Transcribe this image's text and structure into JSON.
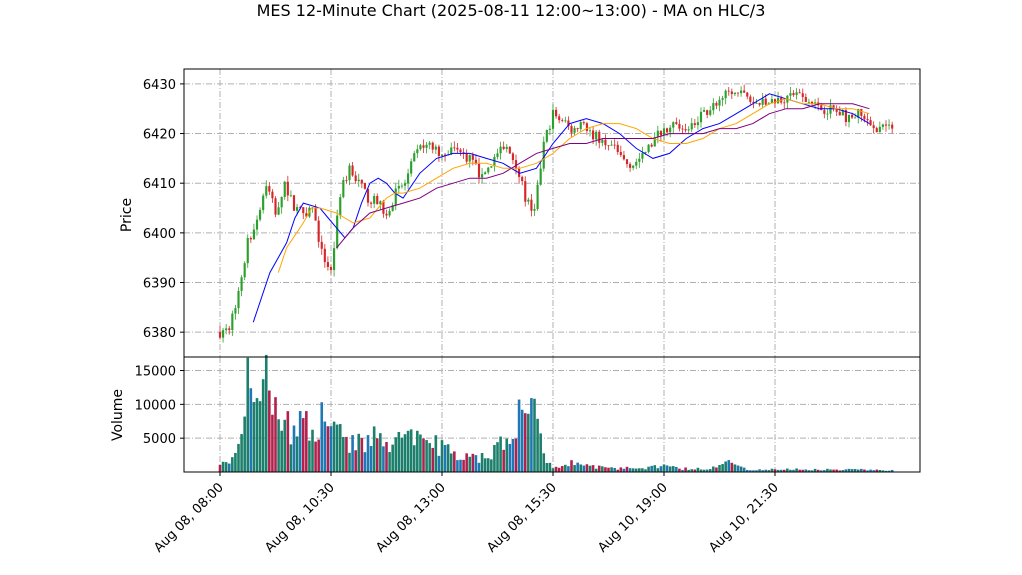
{
  "title": "MES 12-Minute Chart (2025-08-11 12:00~13:00) - MA on HLC/3",
  "chart_data": {
    "type": "candlestick",
    "grid": true,
    "price_panel": {
      "ylabel": "Price",
      "ylim": [
        6375,
        6433
      ],
      "yticks": [
        6380,
        6390,
        6400,
        6410,
        6420,
        6430
      ]
    },
    "volume_panel": {
      "ylabel": "Volume",
      "ylim": [
        0,
        17000
      ],
      "yticks": [
        5000,
        10000,
        15000
      ]
    },
    "x_tick_labels": [
      "Aug 08, 08:00",
      "Aug 08, 10:30",
      "Aug 08, 13:00",
      "Aug 08, 15:30",
      "Aug 10, 19:00",
      "Aug 10, 21:30"
    ],
    "x_tick_bars": [
      0,
      12,
      24,
      36,
      48,
      60
    ],
    "bar_count": 73,
    "colors": {
      "up": "#2ca02c",
      "down": "#d62728",
      "vol_up": "#1b7f6b",
      "vol_down": "#b0224d",
      "vol_alt": "#1f77b4"
    },
    "close_path": [
      [
        0,
        6380
      ],
      [
        1,
        6381
      ],
      [
        2,
        6388
      ],
      [
        3,
        6398
      ],
      [
        4,
        6403
      ],
      [
        5,
        6410
      ],
      [
        6,
        6404
      ],
      [
        7,
        6410
      ],
      [
        8,
        6405
      ],
      [
        9,
        6404
      ],
      [
        10,
        6405
      ],
      [
        11,
        6396
      ],
      [
        12,
        6392
      ],
      [
        13,
        6408
      ],
      [
        14,
        6413
      ],
      [
        15,
        6410
      ],
      [
        16,
        6407
      ],
      [
        17,
        6406
      ],
      [
        18,
        6404
      ],
      [
        19,
        6408
      ],
      [
        20,
        6410
      ],
      [
        21,
        6415
      ],
      [
        22,
        6418
      ],
      [
        23,
        6417
      ],
      [
        24,
        6416
      ],
      [
        25,
        6417
      ],
      [
        26,
        6416
      ],
      [
        27,
        6415
      ],
      [
        28,
        6412
      ],
      [
        29,
        6413
      ],
      [
        30,
        6416
      ],
      [
        31,
        6417
      ],
      [
        32,
        6414
      ],
      [
        33,
        6407
      ],
      [
        34,
        6404
      ],
      [
        35,
        6418
      ],
      [
        36,
        6424
      ],
      [
        37,
        6422
      ],
      [
        38,
        6421
      ],
      [
        39,
        6422
      ],
      [
        40,
        6420
      ],
      [
        41,
        6419
      ],
      [
        42,
        6418
      ],
      [
        43,
        6416
      ],
      [
        44,
        6414
      ],
      [
        45,
        6414
      ],
      [
        46,
        6416
      ],
      [
        47,
        6419
      ],
      [
        48,
        6421
      ],
      [
        49,
        6422
      ],
      [
        50,
        6421
      ],
      [
        51,
        6422
      ],
      [
        52,
        6424
      ],
      [
        53,
        6425
      ],
      [
        54,
        6427
      ],
      [
        55,
        6428
      ],
      [
        56,
        6428
      ],
      [
        57,
        6427
      ],
      [
        58,
        6426
      ],
      [
        59,
        6426
      ],
      [
        60,
        6427
      ],
      [
        61,
        6427
      ],
      [
        62,
        6428
      ],
      [
        63,
        6427
      ],
      [
        64,
        6426
      ],
      [
        65,
        6425
      ],
      [
        66,
        6425
      ],
      [
        67,
        6424
      ],
      [
        68,
        6423
      ],
      [
        69,
        6424
      ],
      [
        70,
        6422
      ],
      [
        71,
        6421
      ],
      [
        72,
        6421
      ]
    ],
    "volume_path": [
      [
        0,
        1500
      ],
      [
        1,
        1200
      ],
      [
        2,
        3500
      ],
      [
        3,
        14500
      ],
      [
        4,
        12000
      ],
      [
        5,
        15000
      ],
      [
        6,
        10000
      ],
      [
        7,
        8000
      ],
      [
        8,
        7000
      ],
      [
        9,
        8000
      ],
      [
        10,
        6000
      ],
      [
        11,
        9500
      ],
      [
        12,
        8000
      ],
      [
        13,
        6500
      ],
      [
        14,
        5000
      ],
      [
        15,
        5500
      ],
      [
        16,
        4500
      ],
      [
        17,
        7000
      ],
      [
        18,
        5000
      ],
      [
        19,
        6000
      ],
      [
        20,
        5500
      ],
      [
        21,
        5000
      ],
      [
        22,
        5000
      ],
      [
        23,
        5000
      ],
      [
        24,
        4000
      ],
      [
        25,
        3500
      ],
      [
        26,
        2500
      ],
      [
        27,
        2500
      ],
      [
        28,
        2300
      ],
      [
        29,
        2300
      ],
      [
        30,
        4500
      ],
      [
        31,
        6000
      ],
      [
        32,
        8500
      ],
      [
        33,
        12000
      ],
      [
        34,
        10000
      ],
      [
        35,
        2500
      ],
      [
        36,
        800
      ],
      [
        37,
        900
      ],
      [
        38,
        1500
      ],
      [
        39,
        1800
      ],
      [
        40,
        900
      ],
      [
        41,
        800
      ],
      [
        42,
        700
      ],
      [
        43,
        600
      ],
      [
        44,
        700
      ],
      [
        45,
        600
      ],
      [
        46,
        700
      ],
      [
        47,
        900
      ],
      [
        48,
        1000
      ],
      [
        49,
        700
      ],
      [
        50,
        500
      ],
      [
        51,
        600
      ],
      [
        52,
        500
      ],
      [
        53,
        600
      ],
      [
        54,
        900
      ],
      [
        55,
        1500
      ],
      [
        56,
        800
      ],
      [
        57,
        500
      ],
      [
        58,
        400
      ],
      [
        59,
        400
      ],
      [
        60,
        400
      ],
      [
        61,
        500
      ],
      [
        62,
        500
      ],
      [
        63,
        400
      ],
      [
        64,
        400
      ],
      [
        65,
        400
      ],
      [
        66,
        400
      ],
      [
        67,
        400
      ],
      [
        68,
        400
      ],
      [
        69,
        500
      ],
      [
        70,
        400
      ],
      [
        71,
        300
      ],
      [
        72,
        300
      ]
    ],
    "moving_averages": [
      {
        "color": "#0000ff",
        "points": [
          [
            4,
            6382
          ],
          [
            6,
            6392
          ],
          [
            8,
            6398
          ],
          [
            9,
            6403
          ],
          [
            10,
            6406
          ],
          [
            12,
            6405
          ],
          [
            13,
            6403
          ],
          [
            14,
            6401
          ],
          [
            15,
            6399
          ],
          [
            16,
            6401
          ],
          [
            17,
            6406
          ],
          [
            18,
            6410
          ],
          [
            19,
            6411
          ],
          [
            20,
            6410
          ],
          [
            21,
            6408
          ],
          [
            22,
            6407
          ],
          [
            24,
            6412
          ],
          [
            26,
            6415
          ],
          [
            28,
            6416
          ],
          [
            30,
            6416
          ],
          [
            32,
            6415
          ],
          [
            34,
            6414
          ],
          [
            36,
            6412
          ],
          [
            38,
            6413
          ],
          [
            40,
            6418
          ],
          [
            42,
            6422
          ],
          [
            44,
            6423
          ],
          [
            46,
            6422
          ],
          [
            48,
            6420
          ],
          [
            50,
            6417
          ],
          [
            52,
            6415
          ],
          [
            54,
            6416
          ],
          [
            56,
            6419
          ],
          [
            58,
            6421
          ],
          [
            60,
            6422
          ],
          [
            62,
            6424
          ],
          [
            64,
            6426
          ],
          [
            66,
            6428
          ],
          [
            68,
            6427
          ],
          [
            70,
            6426
          ],
          [
            72,
            6425
          ],
          [
            74,
            6425
          ],
          [
            76,
            6424
          ],
          [
            78,
            6422
          ]
        ]
      },
      {
        "color": "#ffa500",
        "points": [
          [
            7,
            6392
          ],
          [
            8,
            6397
          ],
          [
            10,
            6402
          ],
          [
            11,
            6405
          ],
          [
            12,
            6405
          ],
          [
            14,
            6404
          ],
          [
            15,
            6403
          ],
          [
            16,
            6402
          ],
          [
            18,
            6403
          ],
          [
            19,
            6405
          ],
          [
            20,
            6407
          ],
          [
            21,
            6408
          ],
          [
            22,
            6408
          ],
          [
            24,
            6409
          ],
          [
            26,
            6411
          ],
          [
            28,
            6413
          ],
          [
            30,
            6414
          ],
          [
            32,
            6414
          ],
          [
            34,
            6413
          ],
          [
            36,
            6413
          ],
          [
            38,
            6414
          ],
          [
            40,
            6416
          ],
          [
            42,
            6419
          ],
          [
            44,
            6421
          ],
          [
            46,
            6422
          ],
          [
            48,
            6422
          ],
          [
            50,
            6421
          ],
          [
            52,
            6419
          ],
          [
            54,
            6418
          ],
          [
            56,
            6418
          ],
          [
            58,
            6419
          ],
          [
            60,
            6421
          ],
          [
            62,
            6422
          ],
          [
            64,
            6424
          ],
          [
            66,
            6426
          ],
          [
            68,
            6427
          ],
          [
            70,
            6426
          ],
          [
            72,
            6426
          ],
          [
            74,
            6425
          ],
          [
            76,
            6425
          ],
          [
            78,
            6424
          ]
        ]
      },
      {
        "color": "#800080",
        "points": [
          [
            14,
            6397
          ],
          [
            16,
            6401
          ],
          [
            18,
            6404
          ],
          [
            20,
            6405
          ],
          [
            22,
            6406
          ],
          [
            24,
            6407
          ],
          [
            26,
            6409
          ],
          [
            28,
            6410
          ],
          [
            30,
            6411
          ],
          [
            32,
            6411
          ],
          [
            34,
            6412
          ],
          [
            36,
            6414
          ],
          [
            38,
            6416
          ],
          [
            40,
            6417
          ],
          [
            42,
            6418
          ],
          [
            44,
            6418
          ],
          [
            46,
            6419
          ],
          [
            48,
            6419
          ],
          [
            50,
            6419
          ],
          [
            52,
            6419
          ],
          [
            54,
            6420
          ],
          [
            56,
            6420
          ],
          [
            58,
            6420
          ],
          [
            60,
            6421
          ],
          [
            62,
            6421
          ],
          [
            64,
            6422
          ],
          [
            66,
            6424
          ],
          [
            68,
            6425
          ],
          [
            70,
            6425
          ],
          [
            72,
            6426
          ],
          [
            74,
            6426
          ],
          [
            76,
            6426
          ],
          [
            78,
            6425
          ]
        ]
      }
    ]
  }
}
